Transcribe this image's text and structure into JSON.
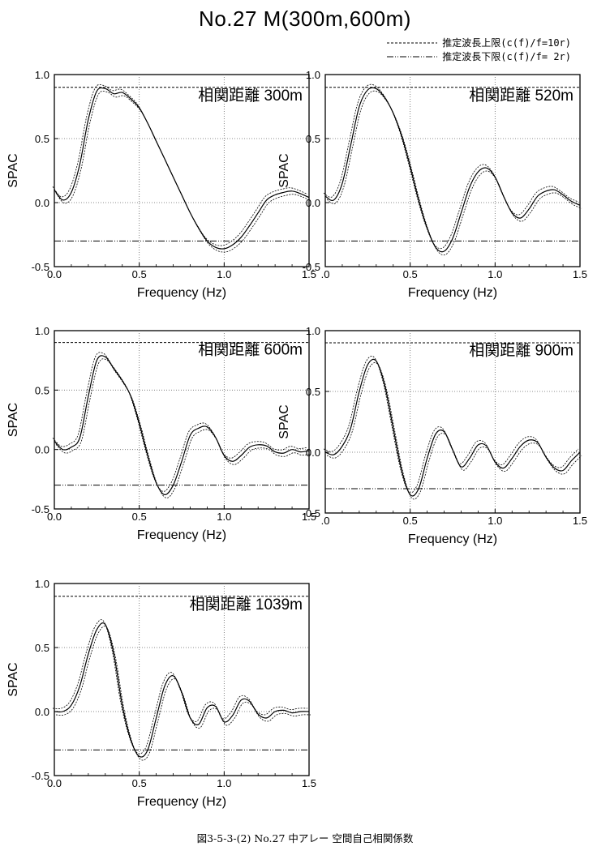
{
  "title": "No.27  M(300m,600m)",
  "legend": {
    "upper": "推定波長上限(c(f)/f=10r)",
    "lower": "推定波長下限(c(f)/f= 2r)"
  },
  "caption": "図3-5-3-(2) No.27  中アレー  空間自己相関係数",
  "chart_data": [
    {
      "type": "line",
      "label": "相関距離  300m",
      "xlabel": "Frequency (Hz)",
      "ylabel": "SPAC",
      "xlim": [
        0,
        1.5
      ],
      "ylim": [
        -0.5,
        1.0
      ],
      "xticks": [
        "0.0",
        "0.5",
        "1.0",
        "1.5"
      ],
      "yticks": [
        "-0.5",
        "0.0",
        "0.5",
        "1.0"
      ],
      "grid": "dotted at x=0.5, 1.0 and y=0.5, 0.0",
      "upper_limit": 0.9,
      "lower_limit": -0.3,
      "series": [
        {
          "x": [
            0.0,
            0.05,
            0.1,
            0.15,
            0.2,
            0.25,
            0.3,
            0.35,
            0.4,
            0.45,
            0.5,
            0.55,
            0.6,
            0.65,
            0.7,
            0.75,
            0.8,
            0.85,
            0.9,
            0.95,
            1.0,
            1.05,
            1.1,
            1.15,
            1.2,
            1.25,
            1.3,
            1.35,
            1.4,
            1.45,
            1.5
          ],
          "y": [
            0.1,
            0.02,
            0.08,
            0.3,
            0.65,
            0.87,
            0.89,
            0.85,
            0.86,
            0.81,
            0.74,
            0.62,
            0.48,
            0.34,
            0.2,
            0.06,
            -0.08,
            -0.2,
            -0.3,
            -0.35,
            -0.36,
            -0.33,
            -0.27,
            -0.18,
            -0.08,
            0.02,
            0.06,
            0.08,
            0.09,
            0.07,
            0.04
          ]
        }
      ]
    },
    {
      "type": "line",
      "label": "相関距離  520m",
      "xlabel": "Frequency (Hz)",
      "ylabel": "SPAC",
      "xlim": [
        0,
        1.5
      ],
      "ylim": [
        -0.5,
        1.0
      ],
      "xticks": [
        ".0",
        "0.5",
        "1.0",
        "1.5"
      ],
      "yticks": [
        "-0.5",
        "0.0",
        "0.5",
        "1.0"
      ],
      "grid": "dotted at x=0.5, 1.0 and y=0.5, 0.0",
      "upper_limit": 0.9,
      "lower_limit": -0.3,
      "series": [
        {
          "x": [
            0.0,
            0.05,
            0.1,
            0.15,
            0.2,
            0.25,
            0.3,
            0.35,
            0.4,
            0.45,
            0.5,
            0.55,
            0.6,
            0.65,
            0.7,
            0.75,
            0.8,
            0.85,
            0.9,
            0.95,
            1.0,
            1.05,
            1.1,
            1.15,
            1.2,
            1.25,
            1.3,
            1.35,
            1.4,
            1.45,
            1.5
          ],
          "y": [
            0.05,
            0.02,
            0.15,
            0.45,
            0.75,
            0.88,
            0.89,
            0.82,
            0.7,
            0.52,
            0.28,
            0.02,
            -0.2,
            -0.35,
            -0.38,
            -0.28,
            -0.08,
            0.12,
            0.24,
            0.27,
            0.2,
            0.05,
            -0.08,
            -0.12,
            -0.05,
            0.05,
            0.09,
            0.1,
            0.06,
            0.01,
            -0.02
          ]
        }
      ]
    },
    {
      "type": "line",
      "label": "相関距離  600m",
      "xlabel": "Frequency (Hz)",
      "ylabel": "SPAC",
      "xlim": [
        0,
        1.5
      ],
      "ylim": [
        -0.5,
        1.0
      ],
      "xticks": [
        "0.0",
        "0.5",
        "1.0",
        "1.5"
      ],
      "yticks": [
        "-0.5",
        "0.0",
        "0.5",
        "1.0"
      ],
      "grid": "dotted at x=0.5, 1.0 and y=0.5, 0.0",
      "upper_limit": 0.9,
      "lower_limit": -0.3,
      "series": [
        {
          "x": [
            0.0,
            0.05,
            0.1,
            0.15,
            0.2,
            0.25,
            0.3,
            0.35,
            0.4,
            0.45,
            0.5,
            0.55,
            0.6,
            0.65,
            0.7,
            0.75,
            0.8,
            0.85,
            0.9,
            0.95,
            1.0,
            1.05,
            1.1,
            1.15,
            1.2,
            1.25,
            1.3,
            1.35,
            1.4,
            1.45,
            1.5
          ],
          "y": [
            0.07,
            0.0,
            0.02,
            0.1,
            0.45,
            0.75,
            0.78,
            0.68,
            0.58,
            0.45,
            0.22,
            -0.05,
            -0.28,
            -0.38,
            -0.3,
            -0.1,
            0.12,
            0.18,
            0.19,
            0.1,
            -0.05,
            -0.1,
            -0.05,
            0.02,
            0.04,
            0.03,
            -0.02,
            -0.03,
            0.0,
            -0.02,
            -0.01
          ]
        }
      ]
    },
    {
      "type": "line",
      "label": "相関距離  900m",
      "xlabel": "Frequency (Hz)",
      "ylabel": "SPAC",
      "xlim": [
        0,
        1.5
      ],
      "ylim": [
        -0.5,
        1.0
      ],
      "xticks": [
        ".0",
        "0.5",
        "1.0",
        "1.5"
      ],
      "yticks": [
        "-0.5",
        "0.0",
        "0.5",
        "1.0"
      ],
      "grid": "dotted at x=0.5, 1.0 and y=0.5, 0.0",
      "upper_limit": 0.9,
      "lower_limit": -0.3,
      "series": [
        {
          "x": [
            0.0,
            0.05,
            0.1,
            0.15,
            0.2,
            0.25,
            0.3,
            0.35,
            0.4,
            0.45,
            0.5,
            0.55,
            0.6,
            0.65,
            0.7,
            0.75,
            0.8,
            0.85,
            0.9,
            0.95,
            1.0,
            1.05,
            1.1,
            1.15,
            1.2,
            1.25,
            1.3,
            1.35,
            1.4,
            1.45,
            1.5
          ],
          "y": [
            0.0,
            -0.02,
            0.05,
            0.2,
            0.5,
            0.72,
            0.75,
            0.55,
            0.2,
            -0.15,
            -0.35,
            -0.3,
            -0.05,
            0.15,
            0.17,
            0.02,
            -0.12,
            -0.05,
            0.06,
            0.05,
            -0.08,
            -0.13,
            -0.05,
            0.05,
            0.1,
            0.08,
            -0.04,
            -0.13,
            -0.15,
            -0.07,
            0.0
          ]
        }
      ]
    },
    {
      "type": "line",
      "label": "相関距離  1039m",
      "xlabel": "Frequency (Hz)",
      "ylabel": "SPAC",
      "xlim": [
        0,
        1.5
      ],
      "ylim": [
        -0.5,
        1.0
      ],
      "xticks": [
        "0.0",
        "0.5",
        "1.0",
        "1.5"
      ],
      "yticks": [
        "-0.5",
        "0.0",
        "0.5",
        "1.0"
      ],
      "grid": "dotted at x=0.5, 1.0 and y=0.5, 0.0",
      "upper_limit": 0.9,
      "lower_limit": -0.3,
      "series": [
        {
          "x": [
            0.0,
            0.05,
            0.1,
            0.15,
            0.2,
            0.25,
            0.3,
            0.35,
            0.4,
            0.45,
            0.5,
            0.55,
            0.6,
            0.65,
            0.7,
            0.75,
            0.8,
            0.85,
            0.9,
            0.95,
            1.0,
            1.05,
            1.1,
            1.15,
            1.2,
            1.25,
            1.3,
            1.35,
            1.4,
            1.45,
            1.5
          ],
          "y": [
            0.0,
            0.0,
            0.05,
            0.2,
            0.45,
            0.64,
            0.68,
            0.45,
            0.05,
            -0.22,
            -0.35,
            -0.3,
            -0.05,
            0.2,
            0.28,
            0.15,
            -0.05,
            -0.1,
            0.03,
            0.04,
            -0.08,
            -0.03,
            0.09,
            0.08,
            -0.02,
            -0.05,
            0.0,
            0.01,
            -0.01,
            0.0,
            0.0
          ]
        }
      ]
    }
  ]
}
